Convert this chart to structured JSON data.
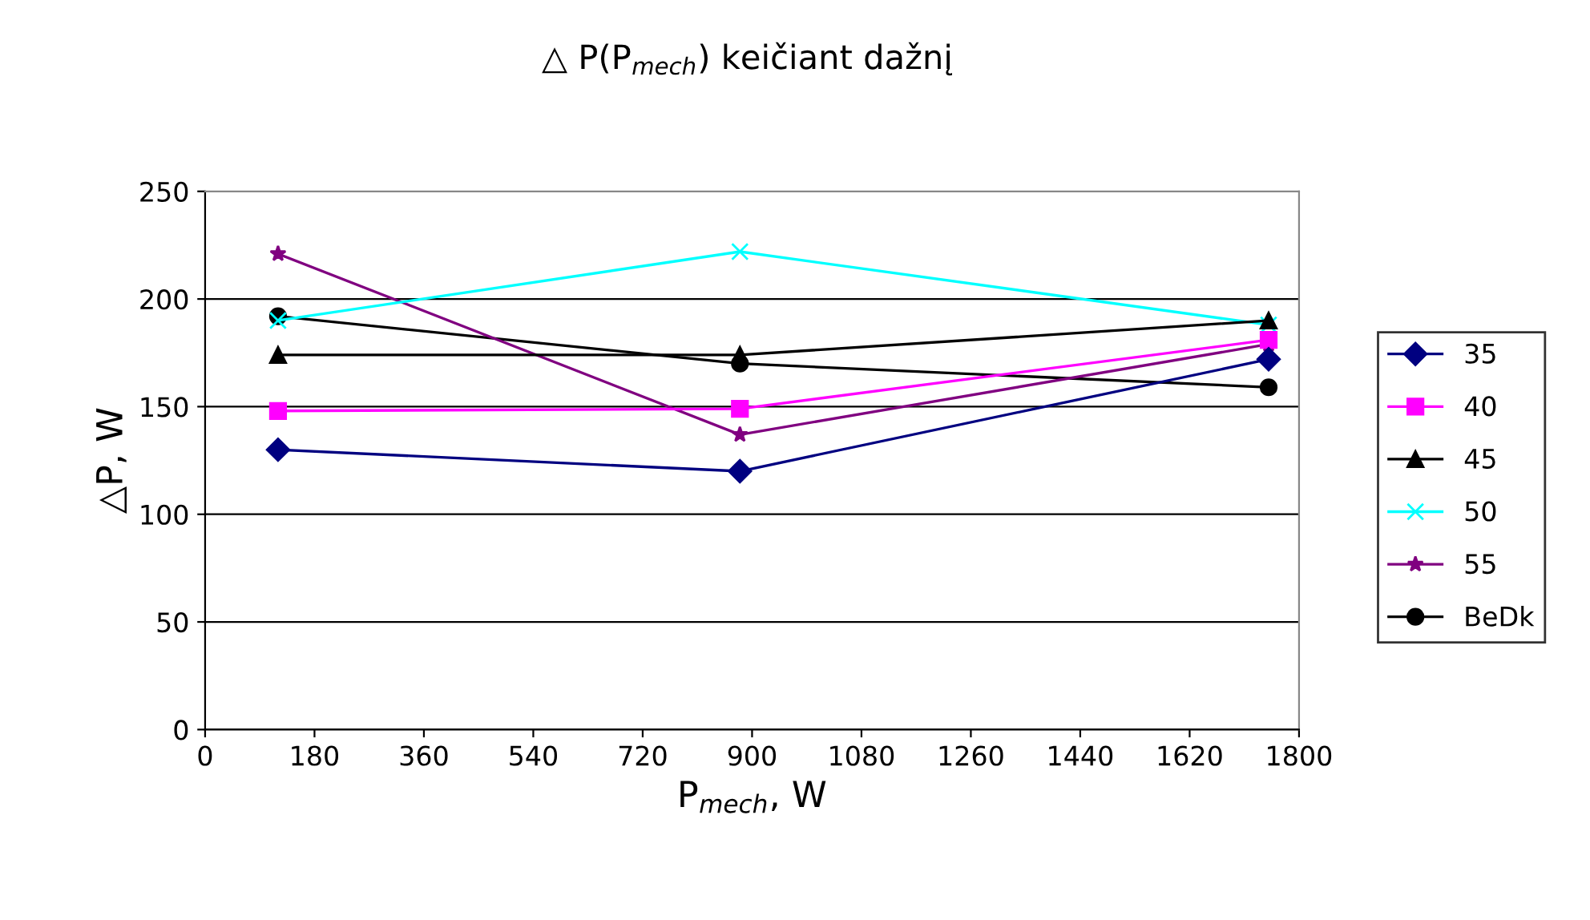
{
  "chart_data": {
    "type": "line",
    "title": "△ P(P$_{mech}$) keičiant dažnį",
    "xlabel": "P$_{mech}$, W",
    "ylabel": "△P, W",
    "xlim": [
      0,
      1800
    ],
    "xticks": [
      0,
      180,
      360,
      540,
      720,
      900,
      1080,
      1260,
      1440,
      1620,
      1800
    ],
    "ylim": [
      0,
      250
    ],
    "yticks": [
      0,
      50,
      100,
      150,
      200,
      250
    ],
    "grid": "y",
    "legend": "right",
    "x": [
      120,
      880,
      1750
    ],
    "series": [
      {
        "name": "35",
        "color": "#000080",
        "marker": "diamond",
        "values": [
          130,
          120,
          172
        ]
      },
      {
        "name": "40",
        "color": "#ff00ff",
        "marker": "square",
        "values": [
          148,
          149,
          181
        ]
      },
      {
        "name": "45",
        "color": "#000000",
        "marker": "triangle",
        "values": [
          174,
          174,
          190
        ]
      },
      {
        "name": "50",
        "color": "#00ffff",
        "marker": "cross",
        "values": [
          190,
          222,
          188
        ]
      },
      {
        "name": "55",
        "color": "#800080",
        "marker": "star",
        "values": [
          221,
          137,
          179
        ]
      },
      {
        "name": "BeDk",
        "color": "#000000",
        "marker": "circle",
        "values": [
          192,
          170,
          159
        ]
      }
    ]
  }
}
